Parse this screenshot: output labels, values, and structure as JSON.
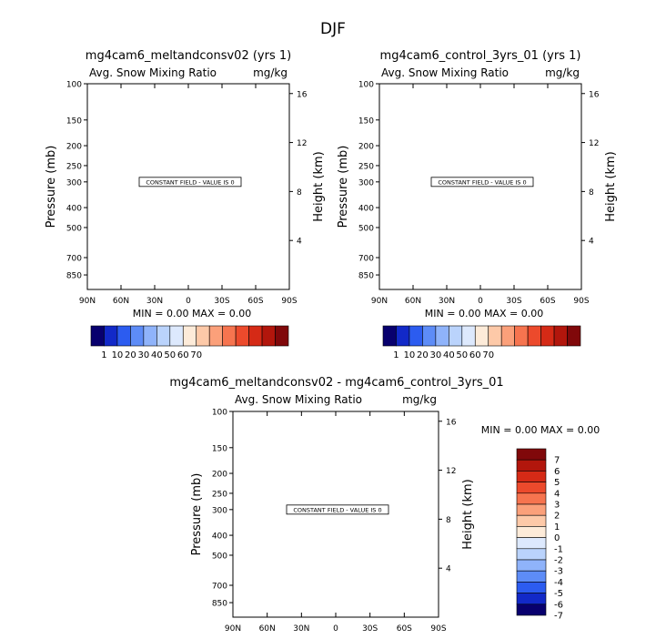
{
  "figure": {
    "title": "DJF"
  },
  "chart_data": [
    {
      "type": "heatmap",
      "title": "mg4cam6_meltandconsv02 (yrs 1)",
      "subtitle_left": "Avg. Snow Mixing Ratio",
      "subtitle_right": "mg/kg",
      "xlabel": "",
      "ylabel": "Pressure (mb)",
      "ylabel_right": "Height (km)",
      "x_ticks": [
        "90N",
        "60N",
        "30N",
        "0",
        "30S",
        "60S",
        "90S"
      ],
      "x_values": [
        90,
        60,
        30,
        0,
        -30,
        -60,
        -90
      ],
      "y_ticks": [
        "100",
        "150",
        "200",
        "250",
        "300",
        "400",
        "500",
        "700",
        "850"
      ],
      "y_values": [
        100,
        150,
        200,
        250,
        300,
        400,
        500,
        700,
        850
      ],
      "ylim": [
        100,
        1000
      ],
      "y_scale": "log",
      "height_ticks": [
        "16",
        "12",
        "8",
        "4"
      ],
      "height_values": [
        16,
        12,
        8,
        4
      ],
      "annotation": "CONSTANT FIELD - VALUE IS 0",
      "stats": "MIN =     0.00   MAX =     0.00",
      "colorbar": {
        "orientation": "horizontal",
        "labels": [
          "1",
          "10",
          "20",
          "30",
          "40",
          "50",
          "60",
          "70"
        ],
        "colors": [
          "#08006e",
          "#1229c8",
          "#2c5cf0",
          "#5d8cf7",
          "#8fb3fa",
          "#bad3fc",
          "#dde9fd",
          "#fdebd9",
          "#fdc9a8",
          "#fba07a",
          "#f6744f",
          "#ec4a2c",
          "#d52a16",
          "#b2160c",
          "#80080a"
        ]
      }
    },
    {
      "type": "heatmap",
      "title": "mg4cam6_control_3yrs_01 (yrs 1)",
      "subtitle_left": "Avg. Snow Mixing Ratio",
      "subtitle_right": "mg/kg",
      "xlabel": "",
      "ylabel": "Pressure (mb)",
      "ylabel_right": "Height (km)",
      "x_ticks": [
        "90N",
        "60N",
        "30N",
        "0",
        "30S",
        "60S",
        "90S"
      ],
      "x_values": [
        90,
        60,
        30,
        0,
        -30,
        -60,
        -90
      ],
      "y_ticks": [
        "100",
        "150",
        "200",
        "250",
        "300",
        "400",
        "500",
        "700",
        "850"
      ],
      "y_values": [
        100,
        150,
        200,
        250,
        300,
        400,
        500,
        700,
        850
      ],
      "ylim": [
        100,
        1000
      ],
      "y_scale": "log",
      "height_ticks": [
        "16",
        "12",
        "8",
        "4"
      ],
      "height_values": [
        16,
        12,
        8,
        4
      ],
      "annotation": "CONSTANT FIELD - VALUE IS 0",
      "stats": "MIN =     0.00   MAX =     0.00",
      "colorbar": {
        "orientation": "horizontal",
        "labels": [
          "1",
          "10",
          "20",
          "30",
          "40",
          "50",
          "60",
          "70"
        ],
        "colors": [
          "#08006e",
          "#1229c8",
          "#2c5cf0",
          "#5d8cf7",
          "#8fb3fa",
          "#bad3fc",
          "#dde9fd",
          "#fdebd9",
          "#fdc9a8",
          "#fba07a",
          "#f6744f",
          "#ec4a2c",
          "#d52a16",
          "#b2160c",
          "#80080a"
        ]
      }
    },
    {
      "type": "heatmap",
      "title": "mg4cam6_meltandconsv02 - mg4cam6_control_3yrs_01",
      "subtitle_left": "Avg. Snow Mixing Ratio",
      "subtitle_right": "mg/kg",
      "xlabel": "",
      "ylabel": "Pressure (mb)",
      "ylabel_right": "Height (km)",
      "x_ticks": [
        "90N",
        "60N",
        "30N",
        "0",
        "30S",
        "60S",
        "90S"
      ],
      "x_values": [
        90,
        60,
        30,
        0,
        -30,
        -60,
        -90
      ],
      "y_ticks": [
        "100",
        "150",
        "200",
        "250",
        "300",
        "400",
        "500",
        "700",
        "850"
      ],
      "y_values": [
        100,
        150,
        200,
        250,
        300,
        400,
        500,
        700,
        850
      ],
      "ylim": [
        100,
        1000
      ],
      "y_scale": "log",
      "height_ticks": [
        "16",
        "12",
        "8",
        "4"
      ],
      "height_values": [
        16,
        12,
        8,
        4
      ],
      "annotation": "CONSTANT FIELD - VALUE IS 0",
      "stats": "MIN =     0.00   MAX =     0.00",
      "colorbar": {
        "orientation": "vertical",
        "labels": [
          "7",
          "6",
          "5",
          "4",
          "3",
          "2",
          "1",
          "0",
          "-1",
          "-2",
          "-3",
          "-4",
          "-5",
          "-6",
          "-7"
        ],
        "colors": [
          "#80080a",
          "#b2160c",
          "#d52a16",
          "#ec4a2c",
          "#f6744f",
          "#fba07a",
          "#fdc9a8",
          "#fdebd9",
          "#dde9fd",
          "#bad3fc",
          "#8fb3fa",
          "#5d8cf7",
          "#2c5cf0",
          "#1229c8",
          "#08006e"
        ]
      }
    }
  ]
}
